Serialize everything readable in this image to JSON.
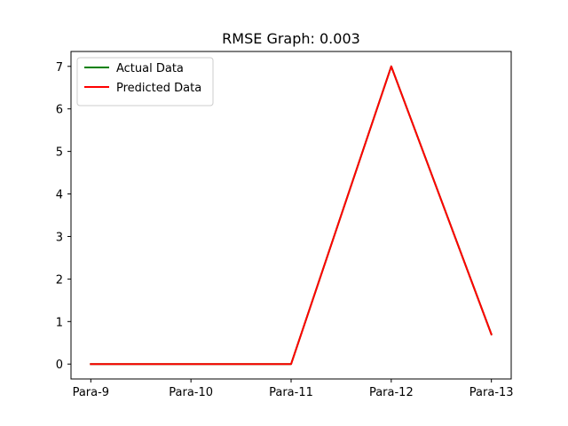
{
  "chart_data": {
    "type": "line",
    "title": "RMSE Graph: 0.003",
    "xlabel": "",
    "ylabel": "",
    "categories": [
      "Para-9",
      "Para-10",
      "Para-11",
      "Para-12",
      "Para-13"
    ],
    "yticks": [
      0,
      1,
      2,
      3,
      4,
      5,
      6,
      7
    ],
    "ylim": [
      -0.35,
      7.35
    ],
    "grid": false,
    "legend_position": "top-left",
    "series": [
      {
        "name": "Actual Data",
        "color": "#008000",
        "values": [
          0,
          0,
          0,
          7,
          0.7
        ]
      },
      {
        "name": "Predicted Data",
        "color": "#ff0000",
        "values": [
          0,
          0,
          0,
          7,
          0.7
        ]
      }
    ]
  }
}
